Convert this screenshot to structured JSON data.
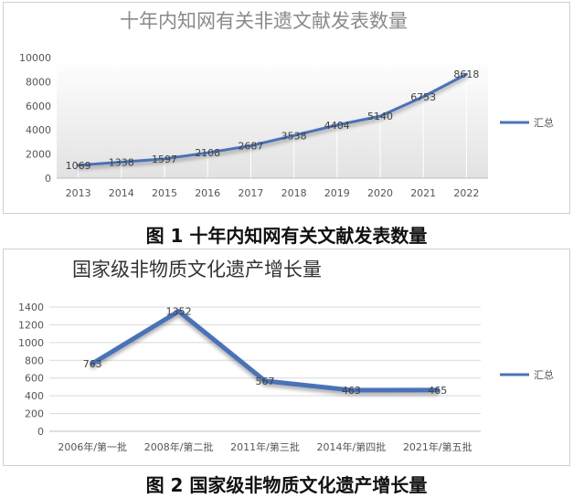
{
  "chart_data": [
    {
      "type": "line",
      "title": "十年内知网有关非遗文献发表数量",
      "x": [
        "2013",
        "2014",
        "2015",
        "2016",
        "2017",
        "2018",
        "2019",
        "2020",
        "2021",
        "2022"
      ],
      "series": [
        {
          "name": "汇总",
          "values": [
            1069,
            1338,
            1597,
            2108,
            2687,
            3538,
            4404,
            5140,
            6753,
            8618
          ]
        }
      ],
      "yticks": [
        0,
        2000,
        4000,
        6000,
        8000,
        10000
      ],
      "ylim": [
        0,
        10000
      ],
      "legend": "right",
      "grid": false,
      "color": "#4a72b8"
    },
    {
      "type": "line",
      "title": "国家级非物质文化遗产增长量",
      "x": [
        "2006年/第一批",
        "2008年/第二批",
        "2011年/第三批",
        "2014年/第四批",
        "2021年/第五批"
      ],
      "series": [
        {
          "name": "汇总",
          "values": [
            763,
            1352,
            567,
            463,
            465
          ]
        }
      ],
      "yticks": [
        0,
        200,
        400,
        600,
        800,
        1000,
        1200,
        1400
      ],
      "ylim": [
        0,
        1400
      ],
      "legend": "right",
      "grid": true,
      "color": "#4a72b8"
    }
  ],
  "captions": {
    "fig1": "图 1  十年内知网有关文献发表数量",
    "fig2": "图 2  国家级非物质文化遗产增长量"
  }
}
